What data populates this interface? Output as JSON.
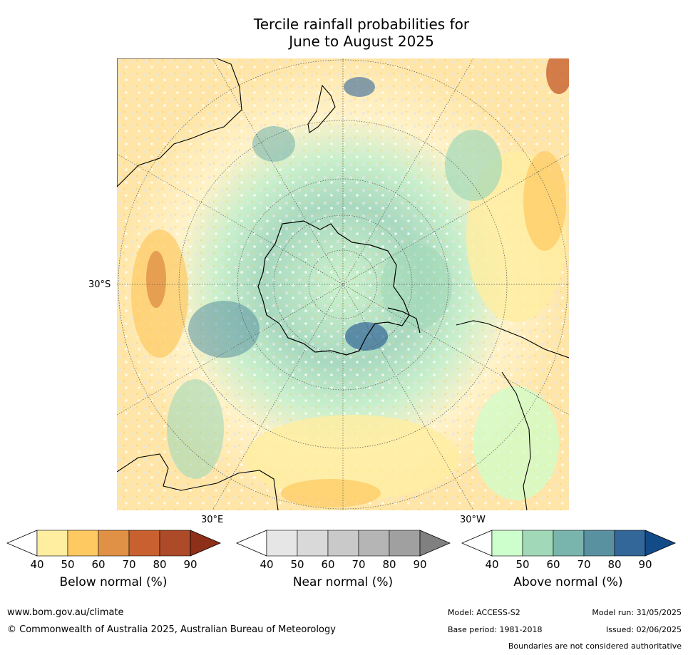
{
  "title_line1": "Tercile rainfall probabilities for",
  "title_line2": "June to August 2025",
  "map": {
    "lat_label": "30°S",
    "lon_label_east": "30°E",
    "lon_label_west": "30°W"
  },
  "colorbars": [
    {
      "label": "Below normal (%)",
      "ticks": [
        "40",
        "50",
        "60",
        "70",
        "80",
        "90"
      ],
      "colors": [
        "#ffeda0",
        "#fec961",
        "#e09146",
        "#c8612f",
        "#ad4a27",
        "#8e2f1a"
      ]
    },
    {
      "label": "Near normal (%)",
      "ticks": [
        "40",
        "50",
        "60",
        "70",
        "80",
        "90"
      ],
      "colors": [
        "#e6e6e6",
        "#d9d9d9",
        "#c9c9c9",
        "#b5b5b5",
        "#a0a0a0",
        "#808080"
      ]
    },
    {
      "label": "Above normal (%)",
      "ticks": [
        "40",
        "50",
        "60",
        "70",
        "80",
        "90"
      ],
      "colors": [
        "#ccffcc",
        "#a1d8b8",
        "#7ab5ad",
        "#5a91a0",
        "#336699",
        "#134b88"
      ]
    }
  ],
  "footer": {
    "url": "www.bom.gov.au/climate",
    "copyright": "© Commonwealth of Australia 2025, Australian Bureau of Meteorology",
    "model": "Model: ACCESS-S2",
    "base_period": "Base period: 1981-2018",
    "model_run": "Model run: 31/05/2025",
    "issued": "Issued: 02/06/2025",
    "disclaimer": "Boundaries are not considered authoritative"
  }
}
